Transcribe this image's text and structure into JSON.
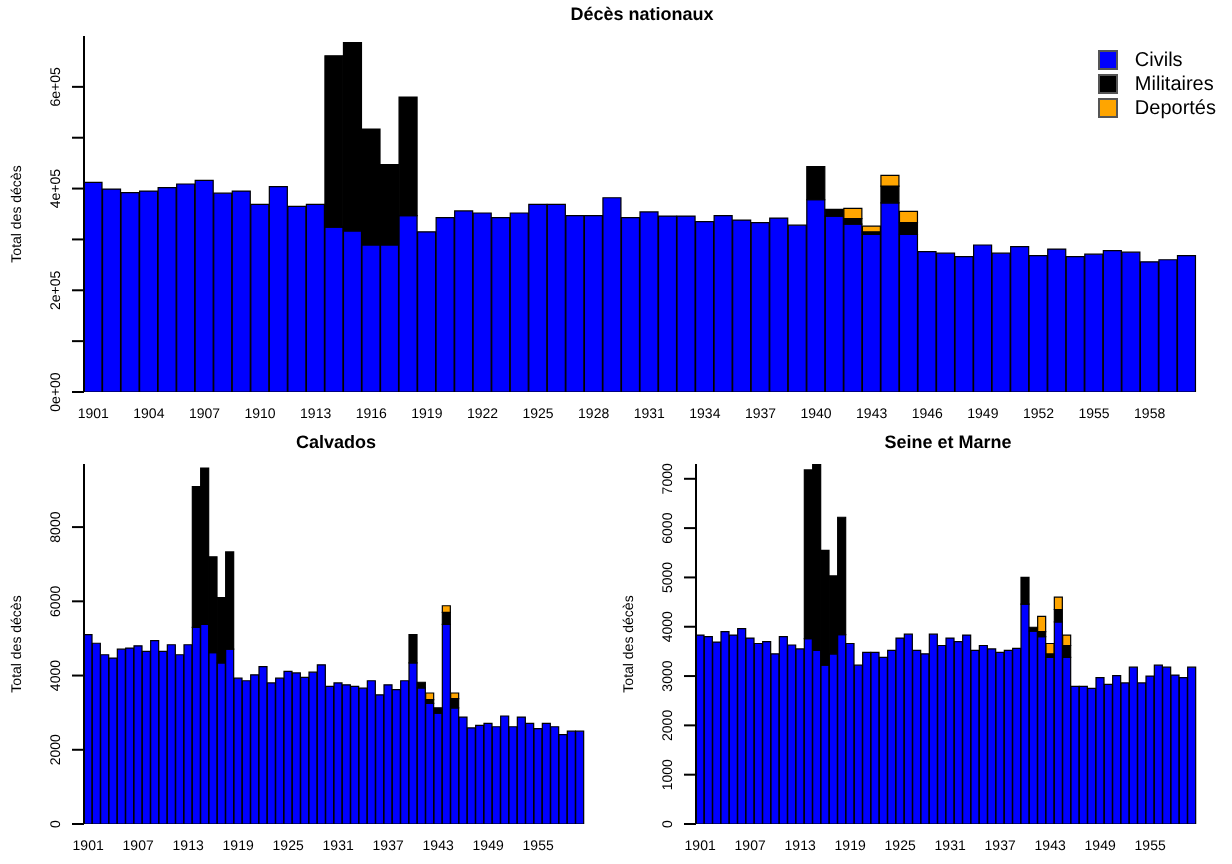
{
  "chart_data": [
    {
      "type": "bar",
      "stacked": true,
      "title": "Décès nationaux",
      "ylabel": "Total des décès",
      "legend": "top right",
      "categories": [
        "1901",
        null,
        null,
        "1904",
        null,
        null,
        "1907",
        null,
        null,
        "1910",
        null,
        null,
        "1913",
        null,
        null,
        "1916",
        null,
        null,
        "1919",
        null,
        null,
        "1922",
        null,
        null,
        "1925",
        null,
        null,
        "1928",
        null,
        null,
        "1931",
        null,
        null,
        "1934",
        null,
        null,
        "1937",
        null,
        null,
        "1940",
        null,
        null,
        "1943",
        null,
        null,
        "1946",
        null,
        null,
        "1949",
        null,
        null,
        "1952",
        null,
        null,
        "1955",
        null,
        null,
        "1958",
        null,
        null
      ],
      "ylim": [
        0,
        700000
      ],
      "yticks": [
        {
          "value": 0,
          "label": "0e+00"
        },
        {
          "value": 100000,
          "label": null
        },
        {
          "value": 200000,
          "label": "2e+05"
        },
        {
          "value": 300000,
          "label": null
        },
        {
          "value": 400000,
          "label": "4e+05"
        },
        {
          "value": 500000,
          "label": null
        },
        {
          "value": 600000,
          "label": "6e+05"
        }
      ],
      "series": [
        {
          "name": "Civils",
          "color": "#0000ff",
          "values": [
            412000,
            399000,
            392000,
            395000,
            402000,
            409000,
            416000,
            391000,
            395000,
            369000,
            404000,
            365000,
            369000,
            324000,
            317000,
            289000,
            289000,
            347000,
            315000,
            343000,
            356000,
            352000,
            343000,
            352000,
            369000,
            369000,
            347000,
            347000,
            382000,
            343000,
            354000,
            346000,
            346000,
            335000,
            347000,
            338000,
            333000,
            342000,
            328000,
            378000,
            346000,
            330000,
            310000,
            372000,
            310000,
            276000,
            273000,
            266000,
            289000,
            273000,
            286000,
            268000,
            281000,
            266000,
            271000,
            278000,
            275000,
            256000,
            260000,
            268000
          ]
        },
        {
          "name": "Militaires",
          "color": "#000000",
          "values": [
            0,
            0,
            0,
            0,
            0,
            0,
            0,
            0,
            0,
            0,
            0,
            0,
            0,
            337000,
            370000,
            228000,
            158000,
            233000,
            0,
            0,
            0,
            0,
            0,
            0,
            0,
            0,
            0,
            0,
            0,
            0,
            0,
            0,
            0,
            0,
            0,
            0,
            0,
            0,
            0,
            65000,
            13000,
            11000,
            5000,
            33000,
            23000,
            0,
            0,
            0,
            0,
            0,
            0,
            0,
            0,
            0,
            0,
            0,
            0,
            0,
            0,
            0
          ]
        },
        {
          "name": "Deportés",
          "color": "#ffa500",
          "values": [
            0,
            0,
            0,
            0,
            0,
            0,
            0,
            0,
            0,
            0,
            0,
            0,
            0,
            0,
            0,
            0,
            0,
            0,
            0,
            0,
            0,
            0,
            0,
            0,
            0,
            0,
            0,
            0,
            0,
            0,
            0,
            0,
            0,
            0,
            0,
            0,
            0,
            0,
            0,
            0,
            0,
            20000,
            11000,
            21000,
            22000,
            0,
            0,
            0,
            0,
            0,
            0,
            0,
            0,
            0,
            0,
            0,
            0,
            0,
            0,
            0
          ]
        }
      ]
    },
    {
      "type": "bar",
      "stacked": true,
      "title": "Calvados",
      "ylabel": "Total des décès",
      "categories": [
        "1901",
        null,
        null,
        null,
        null,
        null,
        "1907",
        null,
        null,
        null,
        null,
        null,
        "1913",
        null,
        null,
        null,
        null,
        null,
        "1919",
        null,
        null,
        null,
        null,
        null,
        "1925",
        null,
        null,
        null,
        null,
        null,
        "1931",
        null,
        null,
        null,
        null,
        null,
        "1937",
        null,
        null,
        null,
        null,
        null,
        "1943",
        null,
        null,
        null,
        null,
        null,
        "1949",
        null,
        null,
        null,
        null,
        null,
        "1955",
        null,
        null,
        null,
        null,
        null
      ],
      "ylim": [
        0,
        9700
      ],
      "yticks": [
        0,
        2000,
        4000,
        6000,
        8000
      ],
      "series": [
        {
          "color": "#0000ff",
          "values": [
            5100,
            4870,
            4560,
            4470,
            4710,
            4740,
            4800,
            4650,
            4940,
            4650,
            4830,
            4560,
            4830,
            5300,
            5380,
            4620,
            4340,
            4710,
            3930,
            3860,
            4020,
            4240,
            3800,
            3930,
            4110,
            4070,
            3950,
            4090,
            4290,
            3710,
            3800,
            3750,
            3710,
            3660,
            3860,
            3480,
            3750,
            3620,
            3860,
            4340,
            3670,
            3250,
            2990,
            5380,
            3130,
            2880,
            2590,
            2660,
            2710,
            2620,
            2910,
            2620,
            2880,
            2710,
            2570,
            2710,
            2620,
            2410,
            2500,
            2500
          ]
        },
        {
          "color": "#000000",
          "values": [
            0,
            0,
            0,
            0,
            0,
            0,
            0,
            0,
            0,
            0,
            0,
            0,
            0,
            3790,
            4210,
            2580,
            1760,
            2620,
            0,
            0,
            0,
            0,
            0,
            0,
            0,
            0,
            0,
            0,
            0,
            0,
            0,
            0,
            0,
            0,
            0,
            0,
            0,
            0,
            0,
            760,
            150,
            100,
            140,
            320,
            250,
            0,
            0,
            0,
            0,
            0,
            0,
            0,
            0,
            0,
            0,
            0,
            0,
            0,
            0,
            0
          ]
        },
        {
          "color": "#ffa500",
          "values": [
            0,
            0,
            0,
            0,
            0,
            0,
            0,
            0,
            0,
            0,
            0,
            0,
            0,
            0,
            0,
            0,
            0,
            0,
            0,
            0,
            0,
            0,
            0,
            0,
            0,
            0,
            0,
            0,
            0,
            0,
            0,
            0,
            0,
            0,
            0,
            0,
            0,
            0,
            0,
            0,
            0,
            180,
            0,
            180,
            150,
            0,
            0,
            0,
            0,
            0,
            0,
            0,
            0,
            0,
            0,
            0,
            0,
            0,
            0,
            0
          ]
        }
      ]
    },
    {
      "type": "bar",
      "stacked": true,
      "title": "Seine et Marne",
      "ylabel": "Total des décès",
      "categories": [
        "1901",
        null,
        null,
        null,
        null,
        null,
        "1907",
        null,
        null,
        null,
        null,
        null,
        "1913",
        null,
        null,
        null,
        null,
        null,
        "1919",
        null,
        null,
        null,
        null,
        null,
        "1925",
        null,
        null,
        null,
        null,
        null,
        "1931",
        null,
        null,
        null,
        null,
        null,
        "1937",
        null,
        null,
        null,
        null,
        null,
        "1943",
        null,
        null,
        null,
        null,
        null,
        "1949",
        null,
        null,
        null,
        null,
        null,
        "1955",
        null,
        null,
        null,
        null,
        null
      ],
      "ylim": [
        0,
        7300
      ],
      "yticks": [
        0,
        1000,
        2000,
        3000,
        4000,
        5000,
        6000,
        7000
      ],
      "series": [
        {
          "color": "#0000ff",
          "values": [
            3830,
            3800,
            3690,
            3900,
            3830,
            3960,
            3770,
            3660,
            3700,
            3450,
            3800,
            3630,
            3550,
            3760,
            3520,
            3220,
            3450,
            3840,
            3660,
            3220,
            3480,
            3480,
            3380,
            3520,
            3770,
            3850,
            3520,
            3450,
            3850,
            3620,
            3770,
            3700,
            3830,
            3520,
            3620,
            3550,
            3480,
            3520,
            3560,
            4460,
            3910,
            3800,
            3380,
            4100,
            3380,
            2790,
            2790,
            2750,
            2970,
            2830,
            3010,
            2860,
            3180,
            2860,
            3000,
            3220,
            3180,
            3020,
            2970,
            3180
          ]
        },
        {
          "color": "#000000",
          "values": [
            0,
            0,
            0,
            0,
            0,
            0,
            0,
            0,
            0,
            0,
            0,
            0,
            0,
            3420,
            3770,
            2330,
            1580,
            2380,
            0,
            0,
            0,
            0,
            0,
            0,
            0,
            0,
            0,
            0,
            0,
            0,
            0,
            0,
            0,
            0,
            0,
            0,
            0,
            0,
            0,
            540,
            80,
            100,
            70,
            250,
            240,
            0,
            0,
            0,
            0,
            0,
            0,
            0,
            0,
            0,
            0,
            0,
            0,
            0,
            0,
            0
          ]
        },
        {
          "color": "#ffa500",
          "values": [
            0,
            0,
            0,
            0,
            0,
            0,
            0,
            0,
            0,
            0,
            0,
            0,
            0,
            0,
            0,
            0,
            0,
            0,
            0,
            0,
            0,
            0,
            0,
            0,
            0,
            0,
            0,
            0,
            0,
            0,
            0,
            0,
            0,
            0,
            0,
            0,
            0,
            0,
            0,
            0,
            0,
            310,
            210,
            250,
            210,
            0,
            0,
            0,
            0,
            0,
            0,
            0,
            0,
            0,
            0,
            0,
            0,
            0,
            0,
            0
          ]
        }
      ]
    }
  ]
}
